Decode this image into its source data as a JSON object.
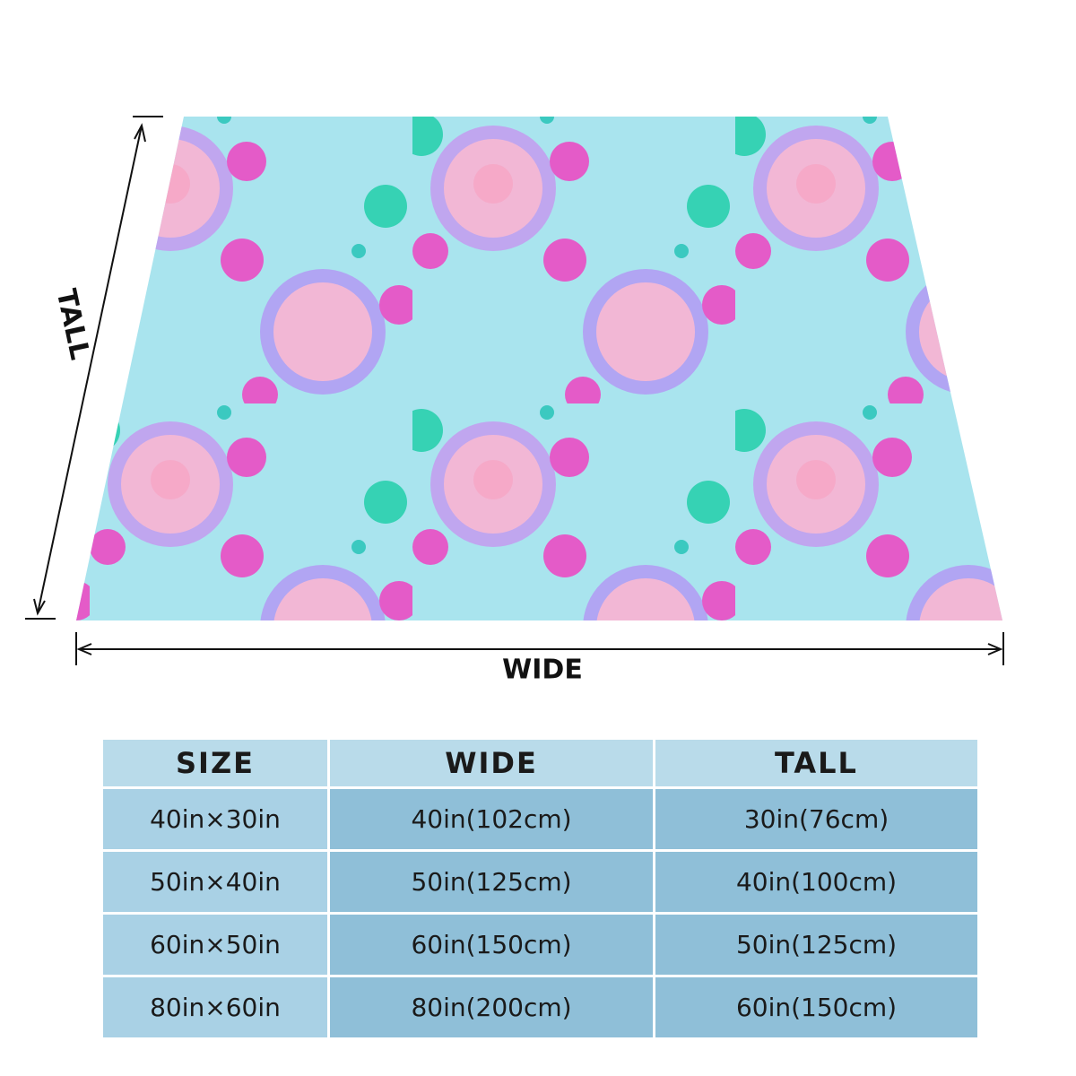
{
  "labels": {
    "tall": "TALL",
    "wide": "WIDE"
  },
  "table": {
    "header": [
      "SIZE",
      "WIDE",
      "TALL"
    ],
    "rows": [
      [
        "40in×30in",
        "40in(102cm)",
        "30in(76cm)"
      ],
      [
        "50in×40in",
        "50in(125cm)",
        "40in(100cm)"
      ],
      [
        "60in×50in",
        "60in(150cm)",
        "50in(125cm)"
      ],
      [
        "80in×60in",
        "80in(200cm)",
        "60in(150cm)"
      ]
    ]
  }
}
